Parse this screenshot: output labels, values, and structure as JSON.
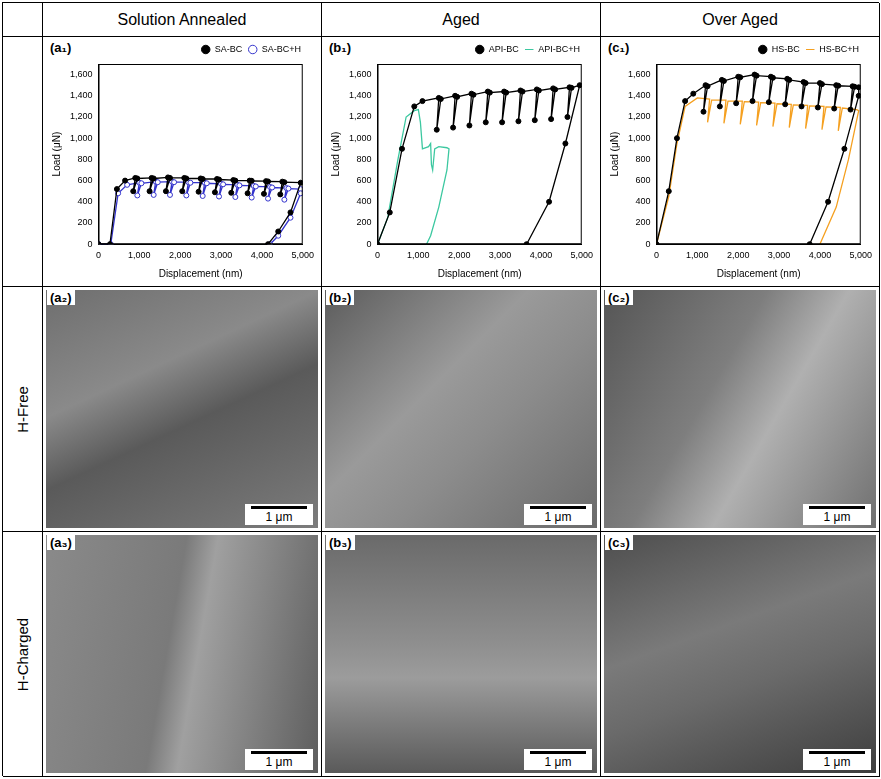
{
  "column_headers": [
    "Solution Annealed",
    "Aged",
    "Over Aged"
  ],
  "row_labels": [
    "H-Free",
    "H-Charged"
  ],
  "chart_data": [
    {
      "type": "line",
      "title": "(a₁)",
      "xlabel": "Displacement (nm)",
      "ylabel": "Load (μN)",
      "xlim": [
        0,
        5000
      ],
      "xticks": [
        0,
        1000,
        2000,
        3000,
        4000,
        5000
      ],
      "ylim": [
        0,
        1700
      ],
      "yticks": [
        0,
        200,
        400,
        600,
        800,
        1000,
        1200,
        1400,
        1600
      ],
      "grid": false,
      "legend": "top",
      "series": [
        {
          "name": "SA-BC",
          "color": "#000000",
          "marker": "circle",
          "x": [
            0,
            280,
            450,
            650,
            900,
            850,
            950,
            1300,
            1250,
            1350,
            1700,
            1650,
            1750,
            2100,
            2050,
            2150,
            2500,
            2450,
            2550,
            2900,
            2850,
            2950,
            3300,
            3250,
            3350,
            3700,
            3650,
            3750,
            4100,
            4050,
            4150,
            4500,
            4450,
            4550,
            4950,
            4700,
            4400,
            4150
          ],
          "values": [
            0,
            0,
            520,
            600,
            625,
            500,
            620,
            625,
            500,
            620,
            630,
            500,
            625,
            625,
            500,
            620,
            620,
            495,
            615,
            615,
            490,
            610,
            605,
            485,
            600,
            600,
            480,
            598,
            595,
            475,
            592,
            590,
            470,
            585,
            580,
            300,
            120,
            0
          ]
        },
        {
          "name": "SA-BC+H",
          "color": "#3333cc",
          "marker": "open_circle",
          "x": [
            0,
            300,
            480,
            700,
            1000,
            950,
            1050,
            1400,
            1350,
            1450,
            1800,
            1750,
            1850,
            2200,
            2150,
            2250,
            2600,
            2550,
            2650,
            3000,
            2950,
            3050,
            3400,
            3350,
            3450,
            3800,
            3750,
            3850,
            4200,
            4150,
            4250,
            4600,
            4550,
            4650,
            4950,
            4950,
            4700,
            4400,
            4200
          ],
          "values": [
            0,
            0,
            480,
            560,
            580,
            460,
            575,
            590,
            465,
            585,
            590,
            465,
            585,
            585,
            460,
            580,
            580,
            455,
            575,
            570,
            450,
            565,
            560,
            445,
            555,
            550,
            440,
            545,
            540,
            430,
            535,
            530,
            420,
            525,
            520,
            480,
            250,
            80,
            0
          ]
        }
      ]
    },
    {
      "type": "line",
      "title": "(b₁)",
      "xlabel": "Displacement (nm)",
      "ylabel": "Load (μN)",
      "xlim": [
        0,
        5000
      ],
      "xticks": [
        0,
        1000,
        2000,
        3000,
        4000,
        5000
      ],
      "ylim": [
        0,
        1700
      ],
      "yticks": [
        0,
        200,
        400,
        600,
        800,
        1000,
        1200,
        1400,
        1600
      ],
      "grid": false,
      "legend": "top",
      "series": [
        {
          "name": "API-BC",
          "color": "#000000",
          "marker": "circle",
          "x": [
            0,
            300,
            600,
            900,
            1100,
            1500,
            1450,
            1550,
            1900,
            1850,
            1950,
            2300,
            2250,
            2350,
            2700,
            2650,
            2750,
            3100,
            3050,
            3150,
            3500,
            3450,
            3550,
            3900,
            3850,
            3950,
            4300,
            4250,
            4350,
            4700,
            4650,
            4750,
            4950,
            4600,
            4200,
            3650
          ],
          "values": [
            0,
            300,
            900,
            1300,
            1350,
            1380,
            1080,
            1370,
            1400,
            1100,
            1390,
            1420,
            1120,
            1410,
            1440,
            1150,
            1430,
            1440,
            1150,
            1430,
            1450,
            1160,
            1440,
            1460,
            1170,
            1450,
            1470,
            1180,
            1460,
            1480,
            1200,
            1475,
            1500,
            950,
            400,
            0
          ]
        },
        {
          "name": "API-BC+H",
          "color": "#3cc8a0",
          "marker": "none",
          "x": [
            0,
            250,
            500,
            700,
            900,
            1000,
            1050,
            1100,
            1250,
            1300,
            1320,
            1350,
            1400,
            1500,
            1700,
            1750,
            1700,
            1500,
            1300,
            1200
          ],
          "values": [
            0,
            250,
            800,
            1200,
            1260,
            1270,
            1150,
            900,
            920,
            950,
            750,
            700,
            900,
            920,
            910,
            900,
            700,
            350,
            80,
            0
          ]
        }
      ]
    },
    {
      "type": "line",
      "title": "(c₁)",
      "xlabel": "Displacement (nm)",
      "ylabel": "Load (μN)",
      "xlim": [
        0,
        5000
      ],
      "xticks": [
        0,
        1000,
        2000,
        3000,
        4000,
        5000
      ],
      "ylim": [
        0,
        1700
      ],
      "yticks": [
        0,
        200,
        400,
        600,
        800,
        1000,
        1200,
        1400,
        1600
      ],
      "grid": false,
      "legend": "top",
      "series": [
        {
          "name": "HS-BC",
          "color": "#000000",
          "marker": "circle",
          "x": [
            0,
            300,
            500,
            700,
            900,
            1200,
            1150,
            1250,
            1600,
            1550,
            1650,
            2000,
            1950,
            2050,
            2400,
            2350,
            2450,
            2800,
            2750,
            2850,
            3200,
            3150,
            3250,
            3600,
            3550,
            3650,
            4000,
            3950,
            4050,
            4400,
            4350,
            4450,
            4800,
            4750,
            4850,
            4950,
            4950,
            4600,
            4200,
            3750
          ],
          "values": [
            0,
            500,
            1000,
            1350,
            1420,
            1500,
            1250,
            1490,
            1550,
            1300,
            1540,
            1580,
            1330,
            1575,
            1600,
            1350,
            1590,
            1580,
            1340,
            1570,
            1560,
            1320,
            1550,
            1530,
            1300,
            1520,
            1520,
            1290,
            1510,
            1500,
            1280,
            1495,
            1490,
            1270,
            1485,
            1480,
            1400,
            900,
            400,
            0
          ]
        },
        {
          "name": "HS-BC+H",
          "color": "#f5a020",
          "marker": "none",
          "x": [
            0,
            300,
            500,
            700,
            1000,
            1300,
            1250,
            1350,
            1700,
            1650,
            1750,
            2100,
            2050,
            2150,
            2500,
            2450,
            2550,
            2900,
            2850,
            2950,
            3300,
            3250,
            3350,
            3700,
            3650,
            3750,
            4100,
            4050,
            4150,
            4500,
            4450,
            4550,
            4900,
            4950,
            4700,
            4400,
            4000
          ],
          "values": [
            0,
            450,
            950,
            1300,
            1380,
            1370,
            1150,
            1360,
            1360,
            1140,
            1350,
            1350,
            1130,
            1345,
            1340,
            1120,
            1335,
            1330,
            1110,
            1325,
            1320,
            1100,
            1315,
            1310,
            1090,
            1305,
            1300,
            1080,
            1295,
            1290,
            1070,
            1285,
            1270,
            1260,
            800,
            350,
            0
          ]
        }
      ]
    }
  ],
  "images": [
    {
      "title": "(a₂)",
      "scale_bar": "1 μm"
    },
    {
      "title": "(b₂)",
      "scale_bar": "1 μm"
    },
    {
      "title": "(c₂)",
      "scale_bar": "1 μm"
    },
    {
      "title": "(a₃)",
      "scale_bar": "1 μm"
    },
    {
      "title": "(b₃)",
      "scale_bar": "1 μm"
    },
    {
      "title": "(c₃)",
      "scale_bar": "1 μm"
    }
  ]
}
